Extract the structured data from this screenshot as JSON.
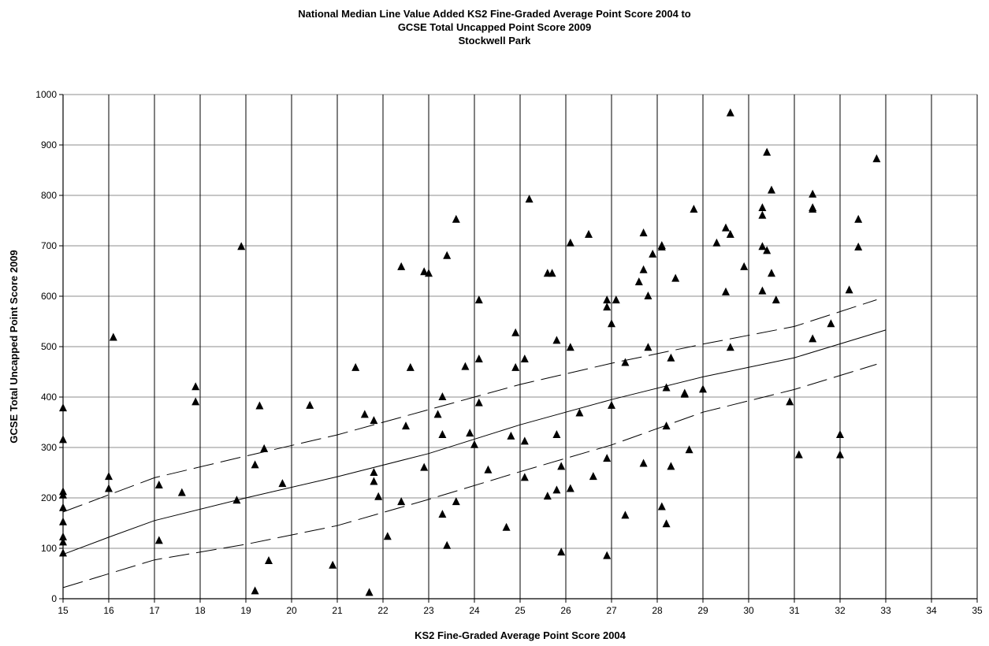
{
  "chart_data": {
    "type": "scatter",
    "title_lines": [
      "National Median Line Value Added KS2 Fine-Graded Average Point Score 2004 to",
      "GCSE Total Uncapped Point Score 2009",
      "Stockwell Park"
    ],
    "xlabel": "KS2 Fine-Graded Average Point Score 2004",
    "ylabel": "GCSE Total Uncapped Point Score 2009",
    "xlim": [
      15,
      35
    ],
    "ylim": [
      0,
      1000
    ],
    "x_ticks": [
      15,
      16,
      17,
      18,
      19,
      20,
      21,
      22,
      23,
      24,
      25,
      26,
      27,
      28,
      29,
      30,
      31,
      32,
      33,
      34,
      35
    ],
    "y_ticks": [
      0,
      100,
      200,
      300,
      400,
      500,
      600,
      700,
      800,
      900,
      1000
    ],
    "grid": "x and y",
    "legend": "none",
    "colors": {
      "marker": "#000000",
      "grid": "#000000",
      "line": "#000000"
    },
    "lines": [
      {
        "style": "solid",
        "points": [
          [
            15,
            88
          ],
          [
            16,
            122
          ],
          [
            17,
            155
          ],
          [
            19,
            200
          ],
          [
            21,
            242
          ],
          [
            23,
            288
          ],
          [
            25,
            345
          ],
          [
            27,
            395
          ],
          [
            29,
            440
          ],
          [
            31,
            478
          ],
          [
            33,
            533
          ]
        ]
      },
      {
        "style": "dashed",
        "points": [
          [
            15,
            172
          ],
          [
            17,
            240
          ],
          [
            19,
            283
          ],
          [
            21,
            325
          ],
          [
            23,
            375
          ],
          [
            25,
            425
          ],
          [
            27,
            467
          ],
          [
            29,
            505
          ],
          [
            31,
            540
          ],
          [
            32.8,
            593
          ]
        ]
      },
      {
        "style": "dashed",
        "points": [
          [
            15,
            22
          ],
          [
            17,
            77
          ],
          [
            19,
            108
          ],
          [
            21,
            145
          ],
          [
            23,
            197
          ],
          [
            25,
            252
          ],
          [
            27,
            305
          ],
          [
            29,
            370
          ],
          [
            31,
            415
          ],
          [
            32.8,
            465
          ]
        ]
      }
    ],
    "points": [
      [
        15,
        378
      ],
      [
        15,
        315
      ],
      [
        15,
        212
      ],
      [
        15,
        205
      ],
      [
        15,
        180
      ],
      [
        15,
        152
      ],
      [
        15,
        122
      ],
      [
        15,
        112
      ],
      [
        15,
        90
      ],
      [
        16,
        242
      ],
      [
        16,
        218
      ],
      [
        16.1,
        518
      ],
      [
        17.1,
        225
      ],
      [
        17.1,
        115
      ],
      [
        17.6,
        210
      ],
      [
        17.9,
        390
      ],
      [
        17.9,
        420
      ],
      [
        18.8,
        195
      ],
      [
        18.9,
        698
      ],
      [
        19.2,
        265
      ],
      [
        19.2,
        15
      ],
      [
        19.3,
        382
      ],
      [
        19.4,
        297
      ],
      [
        19.5,
        75
      ],
      [
        19.8,
        228
      ],
      [
        20.4,
        383
      ],
      [
        20.9,
        66
      ],
      [
        21.4,
        458
      ],
      [
        21.6,
        365
      ],
      [
        21.7,
        12
      ],
      [
        21.8,
        353
      ],
      [
        21.8,
        250
      ],
      [
        21.8,
        232
      ],
      [
        21.9,
        202
      ],
      [
        22.1,
        123
      ],
      [
        22.4,
        192
      ],
      [
        22.4,
        658
      ],
      [
        22.5,
        342
      ],
      [
        22.6,
        458
      ],
      [
        22.9,
        260
      ],
      [
        22.9,
        648
      ],
      [
        23,
        645
      ],
      [
        23.2,
        365
      ],
      [
        23.3,
        400
      ],
      [
        23.3,
        325
      ],
      [
        23.3,
        167
      ],
      [
        23.4,
        105
      ],
      [
        23.4,
        680
      ],
      [
        23.6,
        192
      ],
      [
        23.6,
        752
      ],
      [
        23.8,
        460
      ],
      [
        23.9,
        328
      ],
      [
        24,
        305
      ],
      [
        24.1,
        592
      ],
      [
        24.1,
        475
      ],
      [
        24.1,
        388
      ],
      [
        24.3,
        255
      ],
      [
        24.7,
        141
      ],
      [
        24.8,
        322
      ],
      [
        24.9,
        527
      ],
      [
        24.9,
        458
      ],
      [
        25.1,
        475
      ],
      [
        25.1,
        240
      ],
      [
        25.1,
        312
      ],
      [
        25.2,
        792
      ],
      [
        25.6,
        645
      ],
      [
        25.6,
        203
      ],
      [
        25.7,
        645
      ],
      [
        25.8,
        215
      ],
      [
        25.8,
        325
      ],
      [
        25.8,
        512
      ],
      [
        25.9,
        262
      ],
      [
        25.9,
        92
      ],
      [
        26.1,
        705
      ],
      [
        26.1,
        498
      ],
      [
        26.1,
        218
      ],
      [
        26.3,
        368
      ],
      [
        26.5,
        722
      ],
      [
        26.6,
        242
      ],
      [
        26.9,
        85
      ],
      [
        26.9,
        592
      ],
      [
        26.9,
        578
      ],
      [
        26.9,
        278
      ],
      [
        27,
        545
      ],
      [
        27,
        383
      ],
      [
        27.1,
        592
      ],
      [
        27.3,
        468
      ],
      [
        27.3,
        165
      ],
      [
        27.6,
        628
      ],
      [
        27.7,
        652
      ],
      [
        27.7,
        725
      ],
      [
        27.7,
        268
      ],
      [
        27.8,
        600
      ],
      [
        27.8,
        498
      ],
      [
        27.9,
        683
      ],
      [
        28.1,
        697
      ],
      [
        28.1,
        700
      ],
      [
        28.1,
        182
      ],
      [
        28.2,
        418
      ],
      [
        28.2,
        148
      ],
      [
        28.2,
        342
      ],
      [
        28.3,
        262
      ],
      [
        28.3,
        477
      ],
      [
        28.4,
        635
      ],
      [
        28.6,
        407
      ],
      [
        28.6,
        405
      ],
      [
        28.7,
        295
      ],
      [
        28.8,
        772
      ],
      [
        29,
        415
      ],
      [
        29.3,
        705
      ],
      [
        29.5,
        735
      ],
      [
        29.5,
        608
      ],
      [
        29.6,
        722
      ],
      [
        29.6,
        498
      ],
      [
        29.6,
        963
      ],
      [
        29.9,
        658
      ],
      [
        30.3,
        775
      ],
      [
        30.3,
        760
      ],
      [
        30.3,
        610
      ],
      [
        30.3,
        698
      ],
      [
        30.4,
        690
      ],
      [
        30.4,
        885
      ],
      [
        30.5,
        645
      ],
      [
        30.5,
        810
      ],
      [
        30.6,
        592
      ],
      [
        30.9,
        390
      ],
      [
        31.1,
        285
      ],
      [
        31.4,
        772
      ],
      [
        31.4,
        775
      ],
      [
        31.4,
        515
      ],
      [
        31.4,
        802
      ],
      [
        31.8,
        545
      ],
      [
        32,
        325
      ],
      [
        32,
        285
      ],
      [
        32.2,
        612
      ],
      [
        32.4,
        752
      ],
      [
        32.4,
        697
      ],
      [
        32.8,
        872
      ]
    ]
  }
}
